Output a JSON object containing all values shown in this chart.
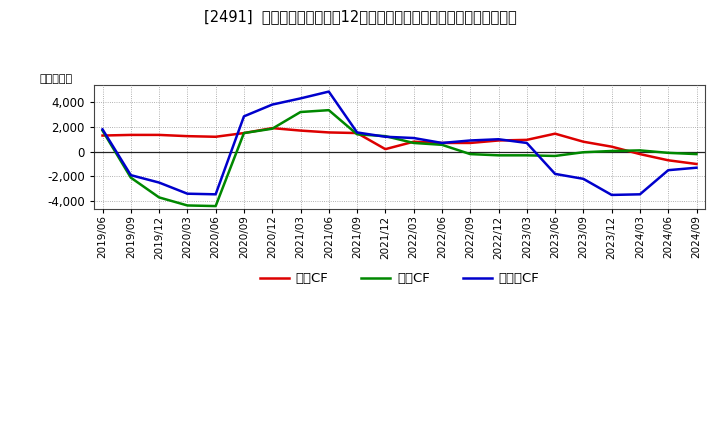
{
  "title": "[2491]  キャッシュフローの12か月移動合計の対前年同期増減額の推移",
  "ylabel": "（百万円）",
  "background_color": "#ffffff",
  "plot_bg_color": "#ffffff",
  "grid_color": "#aaaaaa",
  "ylim": [
    -4600,
    5400
  ],
  "yticks": [
    -4000,
    -2000,
    0,
    2000,
    4000
  ],
  "legend_labels": [
    "営業CF",
    "投資CF",
    "フリーCF"
  ],
  "legend_colors": [
    "#dd0000",
    "#008800",
    "#0000cc"
  ],
  "x_labels": [
    "2019/06",
    "2019/09",
    "2019/12",
    "2020/03",
    "2020/06",
    "2020/09",
    "2020/12",
    "2021/03",
    "2021/06",
    "2021/09",
    "2021/12",
    "2022/03",
    "2022/06",
    "2022/09",
    "2022/12",
    "2023/03",
    "2023/06",
    "2023/09",
    "2023/12",
    "2024/03",
    "2024/06",
    "2024/09"
  ],
  "operating_cf": [
    1300,
    1350,
    1350,
    1250,
    1200,
    1500,
    1900,
    1700,
    1550,
    1500,
    200,
    800,
    700,
    700,
    900,
    950,
    1450,
    800,
    400,
    -200,
    -700,
    -1000
  ],
  "investing_cf": [
    1700,
    -2100,
    -3700,
    -4350,
    -4400,
    1500,
    1850,
    3200,
    3350,
    1400,
    1250,
    700,
    550,
    -200,
    -300,
    -300,
    -350,
    -50,
    50,
    100,
    -100,
    -200
  ],
  "free_cf": [
    1800,
    -1900,
    -2500,
    -3400,
    -3450,
    2850,
    3800,
    4300,
    4850,
    1550,
    1200,
    1100,
    700,
    900,
    1000,
    700,
    -1800,
    -2200,
    -3500,
    -3450,
    -1500,
    -1300
  ]
}
